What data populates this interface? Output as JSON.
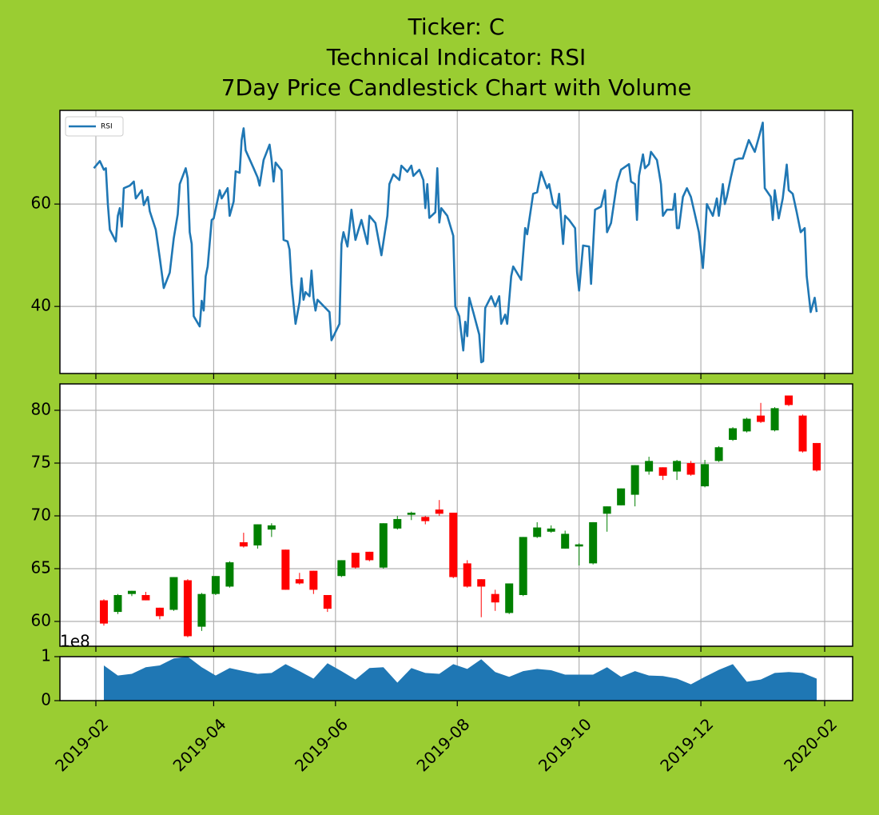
{
  "chart_data": [
    {
      "type": "line",
      "title": [
        "Ticker: C",
        "Technical Indicator: RSI",
        "7Day Price Candlestick Chart with Volume"
      ],
      "x": [
        17927,
        17930,
        17932,
        17933,
        17934,
        17935,
        17938,
        17939,
        17940,
        17941,
        17942,
        17945,
        17947,
        17948,
        17951,
        17952,
        17954,
        17955,
        17958,
        17960,
        17962,
        17965,
        17967,
        17969,
        17970,
        17973,
        17974,
        17975,
        17976,
        17977,
        17980,
        17981,
        17982,
        17983,
        17984,
        17986,
        17987,
        17990,
        17991,
        17994,
        17995,
        17997,
        17998,
        18000,
        18001,
        18002,
        18003,
        18007,
        18009,
        18010,
        18012,
        18015,
        18016,
        18017,
        18018,
        18021,
        18022,
        18024,
        18025,
        18026,
        18028,
        18030,
        18031,
        18032,
        18033,
        18035,
        18036,
        18037,
        18038,
        18039,
        18045,
        18046,
        18050,
        18051,
        18052,
        18054,
        18056,
        18058,
        18061,
        18064,
        18065,
        18068,
        18071,
        18074,
        18075,
        18077,
        18080,
        18081,
        18084,
        18086,
        18087,
        18090,
        18092,
        18093,
        18094,
        18095,
        18098,
        18099,
        18100,
        18101,
        18104,
        18107,
        18108,
        18110,
        18112,
        18113,
        18114,
        18115,
        18117,
        18120,
        18121,
        18122,
        18123,
        18126,
        18128,
        18130,
        18131,
        18133,
        18134,
        18136,
        18137,
        18141,
        18143,
        18144,
        18147,
        18149,
        18151,
        18154,
        18155,
        18157,
        18159,
        18160,
        18162,
        18163,
        18165,
        18168,
        18169,
        18170,
        18172,
        18175,
        18176,
        18178,
        18181,
        18183,
        18184,
        18186,
        18189,
        18191,
        18195,
        18196,
        18198,
        18199,
        18200,
        18202,
        18203,
        18205,
        18206,
        18209,
        18210,
        18211,
        18212,
        18214,
        18217,
        18218,
        18219,
        18220,
        18222,
        18224,
        18226,
        18228,
        18230,
        18232,
        18233,
        18234,
        18237,
        18239,
        18240,
        18242,
        18243,
        18244,
        18246,
        18248,
        18250,
        18252,
        18255,
        18258,
        18260,
        18262,
        18263,
        18266,
        18267,
        18268,
        18270,
        18272,
        18274,
        18275,
        18277,
        18279,
        18281,
        18283,
        18284,
        18286,
        18288,
        18289
      ],
      "series": [
        {
          "name": "RSI",
          "color": "#1f77b4",
          "values": [
            67.0,
            68.4,
            66.7,
            67.0,
            60.0,
            55.0,
            52.7,
            57.7,
            59.2,
            55.6,
            63.1,
            63.6,
            64.4,
            61.1,
            62.7,
            59.8,
            61.4,
            58.6,
            55.0,
            49.5,
            43.6,
            46.6,
            53.3,
            58.0,
            63.9,
            67.0,
            65.0,
            54.5,
            52.2,
            38.1,
            36.1,
            41.1,
            39.2,
            45.9,
            47.8,
            56.9,
            57.2,
            62.7,
            61.1,
            63.1,
            57.7,
            60.5,
            66.4,
            66.1,
            72.5,
            74.8,
            70.5,
            67.0,
            65.2,
            63.6,
            68.6,
            71.6,
            68.6,
            64.4,
            68.1,
            66.6,
            53.0,
            52.7,
            51.1,
            44.4,
            36.6,
            40.8,
            45.5,
            41.3,
            42.8,
            42.0,
            47.0,
            41.7,
            39.2,
            41.3,
            38.9,
            33.4,
            36.6,
            52.2,
            54.5,
            51.7,
            58.9,
            53.0,
            56.9,
            52.2,
            57.7,
            56.3,
            50.0,
            57.7,
            63.9,
            65.8,
            64.7,
            67.5,
            66.3,
            67.5,
            65.5,
            66.7,
            64.7,
            59.2,
            63.9,
            57.3,
            58.4,
            67.0,
            56.4,
            59.2,
            57.7,
            53.8,
            40.0,
            38.1,
            31.4,
            37.0,
            34.2,
            41.7,
            38.9,
            34.5,
            29.1,
            29.3,
            39.7,
            42.0,
            40.0,
            42.0,
            36.6,
            38.4,
            36.6,
            45.9,
            47.8,
            45.2,
            55.3,
            54.1,
            62.0,
            62.3,
            66.3,
            63.1,
            63.9,
            60.0,
            59.2,
            62.0,
            52.2,
            57.7,
            56.9,
            55.3,
            46.7,
            43.1,
            51.9,
            51.7,
            44.4,
            58.9,
            59.5,
            62.7,
            54.5,
            56.3,
            64.2,
            66.7,
            67.8,
            64.4,
            63.9,
            56.9,
            65.5,
            69.7,
            67.0,
            67.8,
            70.2,
            68.6,
            66.3,
            63.9,
            57.7,
            58.9,
            58.9,
            62.0,
            55.3,
            55.3,
            61.4,
            63.1,
            61.4,
            58.0,
            54.5,
            47.5,
            53.0,
            60.0,
            57.7,
            61.1,
            57.7,
            63.9,
            60.0,
            61.4,
            65.2,
            68.6,
            68.9,
            68.9,
            72.5,
            70.2,
            73.0,
            75.9,
            63.1,
            61.4,
            56.9,
            62.7,
            57.2,
            61.1,
            67.7,
            62.7,
            62.0,
            58.4,
            54.5,
            55.3,
            45.9,
            38.9,
            41.7,
            38.9
          ]
        }
      ],
      "xlim": [
        17910,
        18307
      ],
      "ylim": [
        26.9,
        78.3
      ],
      "yticks": [
        40,
        60
      ],
      "grid": true,
      "legend": "upper left"
    },
    {
      "type": "candlestick",
      "x": [
        17932,
        17939,
        17946,
        17953,
        17960,
        17967,
        17974,
        17981,
        17988,
        17995,
        18002,
        18009,
        18016,
        18023,
        18030,
        18037,
        18044,
        18051,
        18058,
        18065,
        18072,
        18079,
        18086,
        18093,
        18100,
        18107,
        18114,
        18121,
        18128,
        18135,
        18142,
        18149,
        18156,
        18163,
        18170,
        18177,
        18184,
        18191,
        18198,
        18205,
        18212,
        18219,
        18226,
        18233,
        18240,
        18247,
        18254,
        18261,
        18268,
        18275,
        18282,
        18289
      ],
      "open": [
        62.0,
        60.9,
        62.6,
        62.5,
        61.3,
        61.1,
        63.9,
        59.5,
        62.6,
        63.3,
        67.5,
        67.2,
        68.7,
        66.8,
        64.0,
        64.8,
        62.5,
        64.3,
        66.5,
        66.6,
        65.1,
        68.8,
        70.1,
        69.9,
        70.6,
        70.3,
        65.5,
        64.0,
        62.6,
        60.8,
        62.5,
        68.0,
        68.5,
        66.9,
        67.1,
        65.5,
        70.2,
        71.0,
        72.0,
        74.2,
        74.6,
        74.2,
        75.0,
        72.8,
        75.2,
        77.2,
        78.0,
        79.5,
        78.1,
        81.4,
        79.5,
        76.9
      ],
      "high": [
        62.1,
        62.6,
        62.9,
        62.8,
        61.3,
        64.2,
        64.0,
        62.7,
        64.3,
        65.7,
        68.4,
        69.2,
        69.3,
        66.8,
        64.6,
        64.8,
        62.5,
        65.8,
        66.5,
        66.6,
        69.3,
        70.0,
        70.4,
        70.0,
        71.5,
        70.3,
        65.8,
        64.0,
        63.0,
        63.6,
        68.0,
        69.4,
        69.1,
        68.6,
        67.4,
        69.4,
        70.9,
        72.6,
        74.8,
        75.6,
        74.6,
        75.3,
        75.2,
        75.3,
        76.6,
        78.4,
        79.3,
        80.7,
        80.3,
        81.4,
        79.6,
        76.9
      ],
      "low": [
        59.6,
        60.7,
        62.4,
        62.0,
        60.2,
        61.0,
        58.5,
        59.1,
        62.5,
        63.2,
        67.0,
        66.9,
        68.0,
        63.0,
        63.5,
        62.6,
        60.9,
        64.2,
        65.0,
        65.7,
        65.0,
        68.7,
        69.6,
        69.2,
        70.0,
        64.1,
        63.2,
        60.4,
        61.0,
        60.7,
        62.4,
        67.9,
        68.4,
        66.9,
        65.3,
        65.4,
        68.5,
        71.0,
        70.9,
        73.9,
        73.4,
        73.4,
        73.8,
        72.7,
        75.1,
        77.1,
        77.9,
        78.8,
        78.0,
        80.4,
        76.0,
        74.2
      ],
      "close": [
        59.8,
        62.5,
        62.9,
        62.0,
        60.5,
        64.2,
        58.6,
        62.6,
        64.3,
        65.6,
        67.1,
        69.2,
        69.1,
        63.0,
        63.6,
        63.0,
        61.2,
        65.8,
        65.1,
        65.8,
        69.3,
        69.7,
        70.3,
        69.5,
        70.2,
        64.2,
        63.3,
        63.3,
        61.8,
        63.6,
        68.0,
        68.9,
        68.8,
        68.3,
        67.3,
        69.4,
        70.9,
        72.6,
        74.8,
        75.2,
        73.8,
        75.2,
        73.9,
        74.9,
        76.5,
        78.3,
        79.2,
        78.9,
        80.2,
        80.5,
        76.1,
        74.3
      ],
      "up_color": "green",
      "down_color": "red",
      "xlim": [
        17910,
        18307
      ],
      "ylim": [
        57.65,
        82.5
      ],
      "yticks": [
        60,
        65,
        70,
        75,
        80
      ],
      "grid": true
    },
    {
      "type": "area",
      "x": [
        17932,
        17939,
        17946,
        17953,
        17960,
        17967,
        17974,
        17981,
        17988,
        17995,
        18002,
        18009,
        18016,
        18023,
        18030,
        18037,
        18044,
        18051,
        18058,
        18065,
        18072,
        18079,
        18086,
        18093,
        18100,
        18107,
        18114,
        18121,
        18128,
        18135,
        18142,
        18149,
        18156,
        18163,
        18170,
        18177,
        18184,
        18191,
        18198,
        18205,
        18212,
        18219,
        18226,
        18233,
        18240,
        18247,
        18254,
        18261,
        18268,
        18275,
        18282,
        18289
      ],
      "values": [
        80000000,
        57000000,
        61000000,
        76000000,
        80000000,
        96000000,
        100000000,
        76000000,
        57000000,
        74000000,
        67000000,
        61000000,
        63000000,
        83000000,
        67000000,
        50000000,
        85000000,
        67000000,
        48000000,
        74000000,
        76000000,
        41000000,
        74000000,
        63000000,
        61000000,
        83000000,
        72000000,
        94000000,
        65000000,
        54000000,
        67000000,
        72000000,
        69000000,
        59000000,
        59000000,
        59000000,
        76000000,
        54000000,
        67000000,
        57000000,
        56000000,
        50000000,
        37000000,
        54000000,
        70000000,
        83000000,
        43000000,
        48000000,
        63000000,
        65000000,
        63000000,
        50000000
      ],
      "color": "#1f77b4",
      "offset_label": "1e8",
      "xlim": [
        17910,
        18307
      ],
      "ylim": [
        0,
        100000000
      ],
      "yticks": [
        0,
        {
          "value": 100000000,
          "label": "1"
        }
      ],
      "grid": true,
      "xticks": [
        {
          "value": 17928,
          "label": "2019-02"
        },
        {
          "value": 17987,
          "label": "2019-04"
        },
        {
          "value": 18048,
          "label": "2019-06"
        },
        {
          "value": 18109,
          "label": "2019-08"
        },
        {
          "value": 18170,
          "label": "2019-10"
        },
        {
          "value": 18231,
          "label": "2019-12"
        },
        {
          "value": 18293,
          "label": "2020-02"
        }
      ]
    }
  ]
}
